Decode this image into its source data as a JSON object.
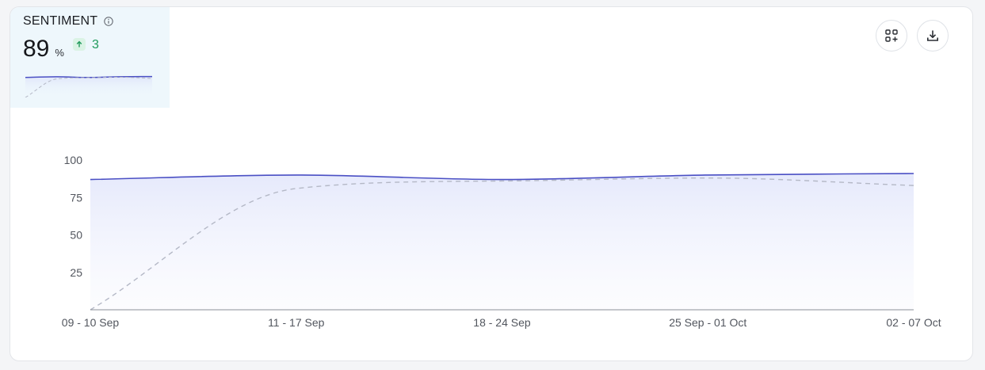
{
  "metric": {
    "title": "SENTIMENT",
    "value": "89",
    "unit": "%",
    "delta": "3",
    "delta_direction": "up",
    "delta_color": "#1f9a5b"
  },
  "toolbar": {
    "add_widget_icon": "add-widget-icon",
    "download_icon": "download-icon"
  },
  "chart_data": {
    "type": "area",
    "categories": [
      "09 - 10 Sep",
      "11 - 17 Sep",
      "18 - 24 Sep",
      "25 Sep - 01 Oct",
      "02 - 07 Oct"
    ],
    "series": [
      {
        "values": [
          87,
          90,
          87,
          90,
          91
        ],
        "color": "#4a4fc4",
        "style": "solid",
        "fill": true
      },
      {
        "values": [
          0,
          81,
          86,
          88,
          83
        ],
        "color": "#b4b8c6",
        "style": "dashed",
        "fill": false
      }
    ],
    "y_ticks": [
      25,
      50,
      75,
      100
    ],
    "ylim": [
      0,
      100
    ],
    "grid": false,
    "legend": "none"
  }
}
